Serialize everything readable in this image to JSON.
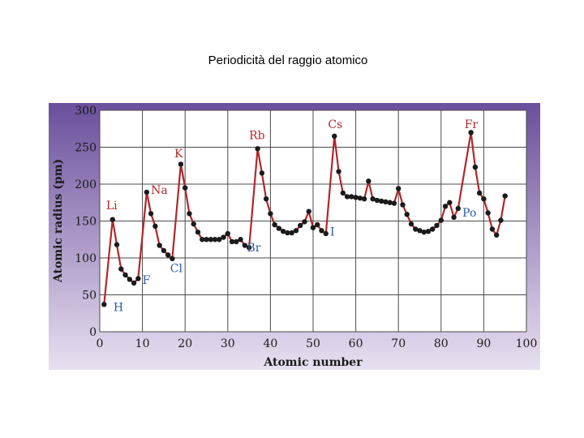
{
  "slide": {
    "title": "Periodicità del raggio atomico"
  },
  "colors": {
    "panel_top": "#6a4f9c",
    "panel_bottom": "#e8e0f0",
    "plot_bg": "#ffffff",
    "grid": "#4a4a4a",
    "line": "#b0272a",
    "point": "#1a1a1a",
    "peak_label": "#b0272a",
    "trough_label": "#2e5aa8"
  },
  "chart_data": {
    "type": "line",
    "title": "",
    "xlabel": "Atomic number",
    "ylabel": "Atomic radius (pm)",
    "xlim": [
      0,
      100
    ],
    "ylim": [
      0,
      300
    ],
    "xticks": [
      0,
      10,
      20,
      30,
      40,
      50,
      60,
      70,
      80,
      90,
      100
    ],
    "yticks": [
      0,
      50,
      100,
      150,
      200,
      250,
      300
    ],
    "grid": true,
    "series": [
      {
        "points": [
          [
            1,
            37
          ],
          [
            3,
            152
          ],
          [
            4,
            118
          ],
          [
            5,
            85
          ],
          [
            6,
            77
          ],
          [
            7,
            71
          ],
          [
            8,
            66
          ],
          [
            9,
            72
          ],
          [
            11,
            189
          ],
          [
            12,
            160
          ],
          [
            13,
            143
          ],
          [
            14,
            117
          ],
          [
            15,
            110
          ],
          [
            16,
            104
          ],
          [
            17,
            99
          ],
          [
            19,
            227
          ],
          [
            20,
            195
          ],
          [
            21,
            160
          ],
          [
            22,
            146
          ],
          [
            23,
            135
          ],
          [
            24,
            125
          ],
          [
            25,
            125
          ],
          [
            26,
            125
          ],
          [
            27,
            125
          ],
          [
            28,
            125
          ],
          [
            29,
            128
          ],
          [
            30,
            133
          ],
          [
            31,
            122
          ],
          [
            32,
            122
          ],
          [
            33,
            125
          ],
          [
            34,
            117
          ],
          [
            35,
            114
          ],
          [
            37,
            248
          ],
          [
            38,
            215
          ],
          [
            39,
            180
          ],
          [
            40,
            160
          ],
          [
            41,
            145
          ],
          [
            42,
            140
          ],
          [
            43,
            136
          ],
          [
            44,
            134
          ],
          [
            45,
            134
          ],
          [
            46,
            137
          ],
          [
            47,
            144
          ],
          [
            48,
            149
          ],
          [
            49,
            163
          ],
          [
            50,
            141
          ],
          [
            51,
            145
          ],
          [
            52,
            137
          ],
          [
            53,
            133
          ],
          [
            55,
            265
          ],
          [
            56,
            217
          ],
          [
            57,
            188
          ],
          [
            58,
            183
          ],
          [
            59,
            183
          ],
          [
            60,
            182
          ],
          [
            61,
            181
          ],
          [
            62,
            180
          ],
          [
            63,
            204
          ],
          [
            64,
            180
          ],
          [
            65,
            178
          ],
          [
            66,
            177
          ],
          [
            67,
            176
          ],
          [
            68,
            175
          ],
          [
            69,
            174
          ],
          [
            70,
            194
          ],
          [
            71,
            172
          ],
          [
            72,
            159
          ],
          [
            73,
            146
          ],
          [
            74,
            139
          ],
          [
            75,
            137
          ],
          [
            76,
            135
          ],
          [
            77,
            136
          ],
          [
            78,
            139
          ],
          [
            79,
            144
          ],
          [
            80,
            151
          ],
          [
            81,
            170
          ],
          [
            82,
            175
          ],
          [
            83,
            155
          ],
          [
            84,
            167
          ],
          [
            87,
            270
          ],
          [
            88,
            223
          ],
          [
            89,
            188
          ],
          [
            90,
            180
          ],
          [
            91,
            161
          ],
          [
            92,
            139
          ],
          [
            93,
            131
          ],
          [
            94,
            151
          ],
          [
            95,
            184
          ]
        ]
      }
    ],
    "annotations": [
      {
        "text": "H",
        "x": 3.2,
        "y": 28,
        "kind": "trough"
      },
      {
        "text": "Li",
        "x": 1.5,
        "y": 166,
        "kind": "peak"
      },
      {
        "text": "F",
        "x": 10,
        "y": 65,
        "kind": "trough"
      },
      {
        "text": "Na",
        "x": 12,
        "y": 187,
        "kind": "peak"
      },
      {
        "text": "Cl",
        "x": 16.5,
        "y": 81,
        "kind": "trough"
      },
      {
        "text": "K",
        "x": 17.5,
        "y": 236,
        "kind": "peak"
      },
      {
        "text": "Br",
        "x": 34.5,
        "y": 109,
        "kind": "trough"
      },
      {
        "text": "Rb",
        "x": 35,
        "y": 261,
        "kind": "peak"
      },
      {
        "text": "I",
        "x": 54,
        "y": 130,
        "kind": "trough"
      },
      {
        "text": "Cs",
        "x": 53.5,
        "y": 276,
        "kind": "peak"
      },
      {
        "text": "Po",
        "x": 85,
        "y": 156,
        "kind": "trough"
      },
      {
        "text": "Fr",
        "x": 85.5,
        "y": 276,
        "kind": "peak"
      }
    ]
  }
}
